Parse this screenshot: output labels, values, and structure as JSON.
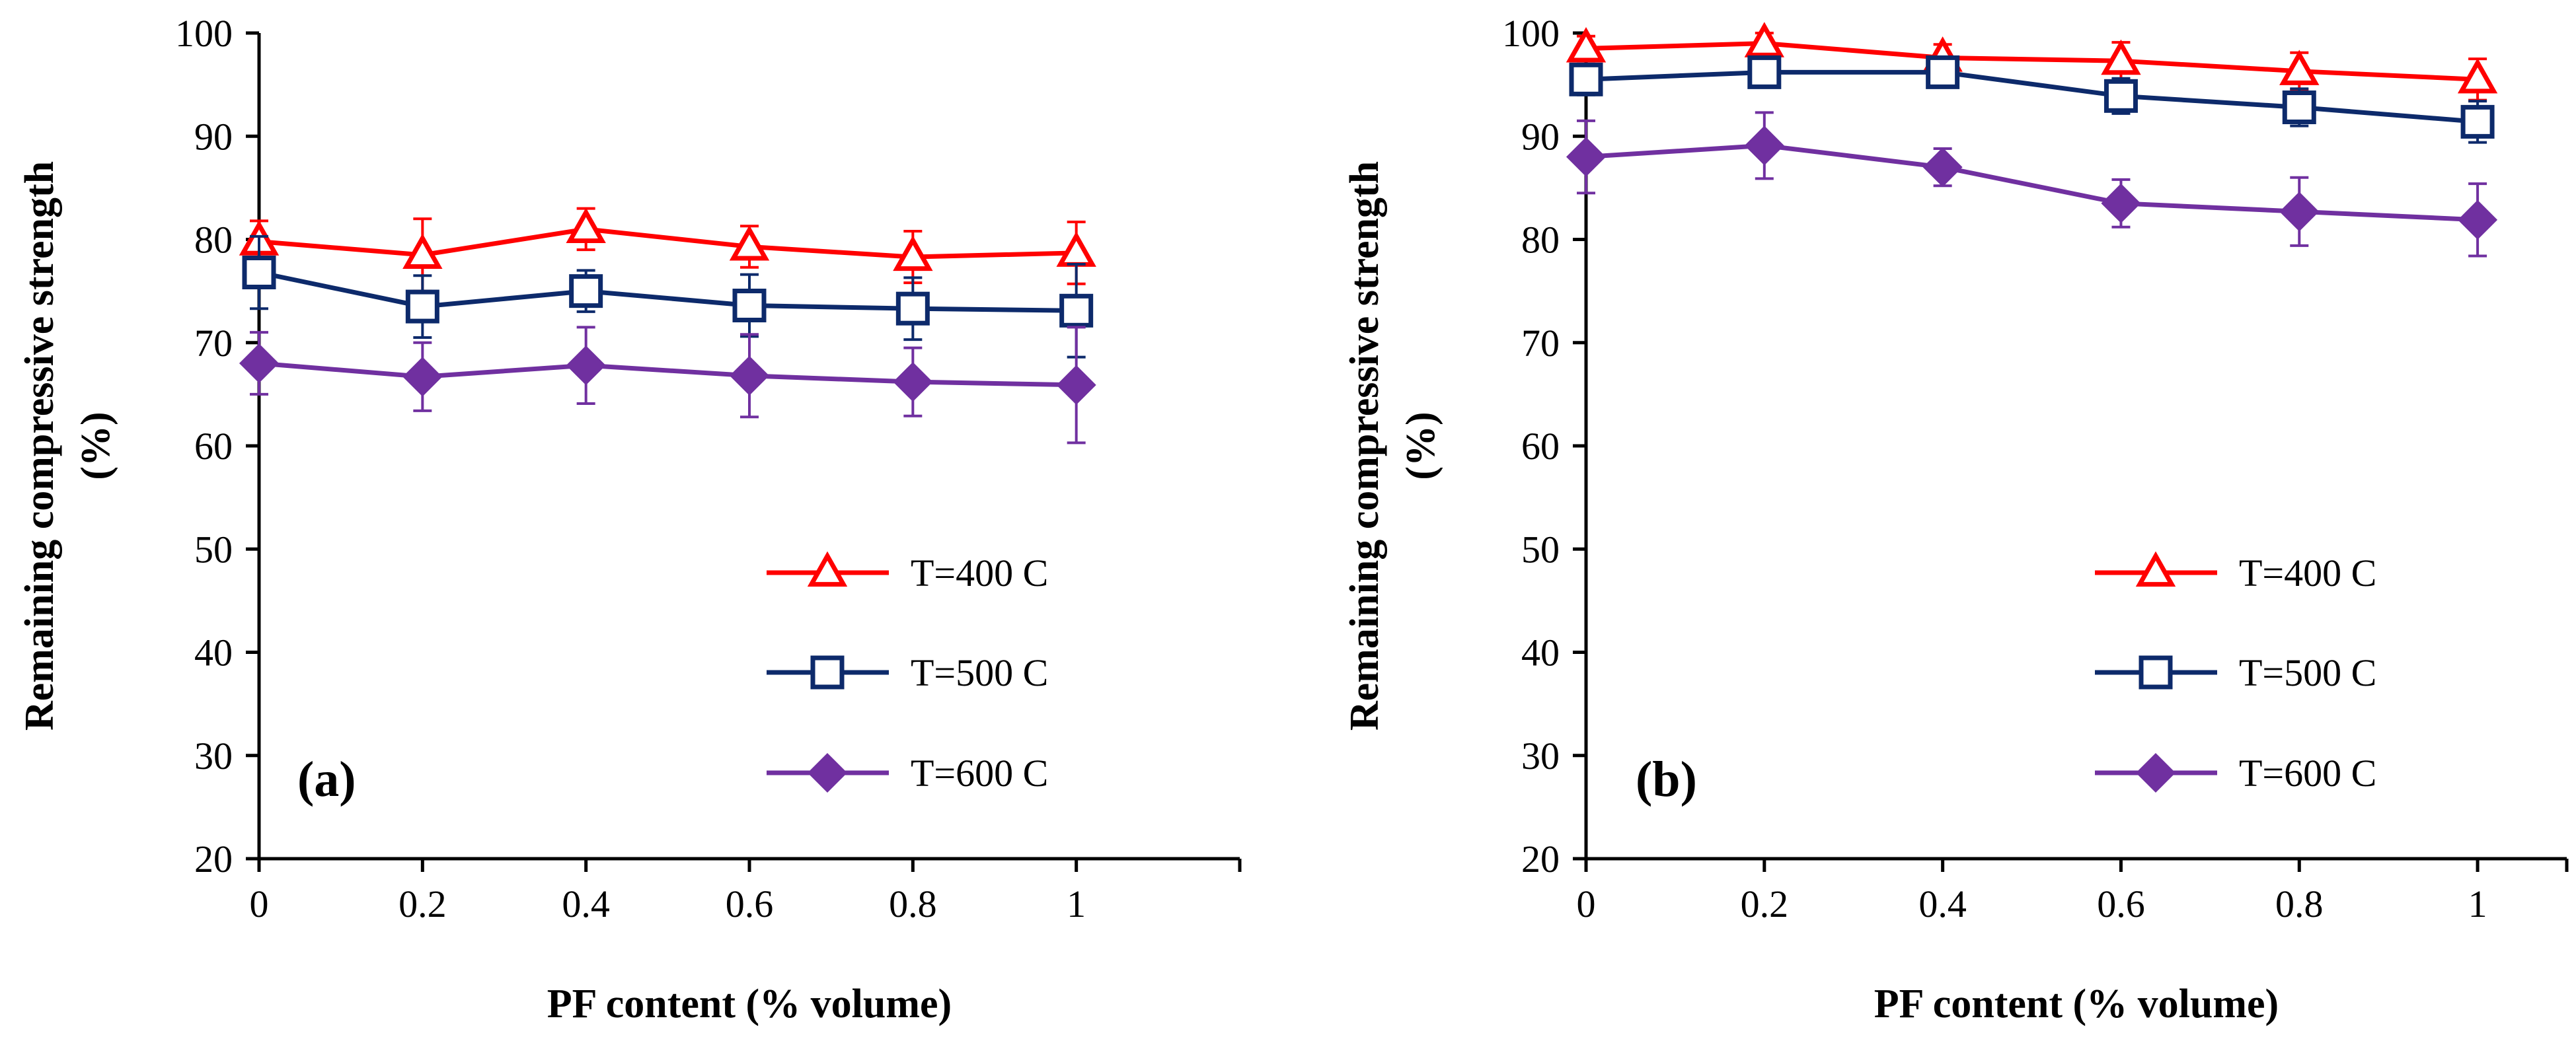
{
  "chart_data": [
    {
      "type": "line",
      "panel_label": "(a)",
      "xlabel": "PF content (% volume)",
      "ylabel": "Remaining compressive strength (%)",
      "ylabel_lines": [
        "Remaining compressive strength",
        "(%)"
      ],
      "x": [
        0,
        0.2,
        0.4,
        0.6,
        0.8,
        1
      ],
      "x_tick_labels": [
        "0",
        "0.2",
        "0.4",
        "0.6",
        "0.8",
        "1"
      ],
      "xlim": [
        0,
        1.2
      ],
      "ylim": [
        20,
        100
      ],
      "y_ticks": [
        20,
        30,
        40,
        50,
        60,
        70,
        80,
        90,
        100
      ],
      "y_tick_labels": [
        "20",
        "30",
        "40",
        "50",
        "60",
        "70",
        "80",
        "90",
        "100"
      ],
      "grid": false,
      "legend_position": "bottom-right",
      "series": [
        {
          "name": "T=400 C",
          "marker": "triangle",
          "color": "#ff0000",
          "values": [
            79.8,
            78.5,
            81.0,
            79.3,
            78.3,
            78.7
          ],
          "errors": [
            2.0,
            3.5,
            2.0,
            2.0,
            2.5,
            3.0
          ]
        },
        {
          "name": "T=500 C",
          "marker": "square",
          "color": "#0d2a6b",
          "values": [
            76.8,
            73.5,
            75.0,
            73.6,
            73.3,
            73.1
          ],
          "errors": [
            3.5,
            3.0,
            2.0,
            3.0,
            3.0,
            4.5
          ]
        },
        {
          "name": "T=600 C",
          "marker": "diamond",
          "color": "#7030a0",
          "values": [
            68.0,
            66.7,
            67.8,
            66.8,
            66.2,
            65.9
          ],
          "errors": [
            3.0,
            3.3,
            3.7,
            4.0,
            3.3,
            5.6
          ]
        }
      ]
    },
    {
      "type": "line",
      "panel_label": "(b)",
      "xlabel": "PF content (% volume)",
      "ylabel": "Remaining compressive strength (%)",
      "ylabel_lines": [
        "Remaining compressive strength",
        "(%)"
      ],
      "x": [
        0,
        0.2,
        0.4,
        0.6,
        0.8,
        1
      ],
      "x_tick_labels": [
        "0",
        "0.2",
        "0.4",
        "0.6",
        "0.8",
        "1"
      ],
      "xlim": [
        0,
        1.1
      ],
      "ylim": [
        20,
        100
      ],
      "y_ticks": [
        20,
        30,
        40,
        50,
        60,
        70,
        80,
        90,
        100
      ],
      "y_tick_labels": [
        "20",
        "30",
        "40",
        "50",
        "60",
        "70",
        "80",
        "90",
        "100"
      ],
      "grid": false,
      "legend_position": "bottom-right",
      "series": [
        {
          "name": "T=400 C",
          "marker": "triangle",
          "color": "#ff0000",
          "values": [
            98.5,
            99.0,
            97.6,
            97.3,
            96.3,
            95.5
          ],
          "errors": [
            1.2,
            1.0,
            1.3,
            1.8,
            1.8,
            2.0
          ]
        },
        {
          "name": "T=500 C",
          "marker": "square",
          "color": "#0d2a6b",
          "values": [
            95.5,
            96.2,
            96.2,
            93.9,
            92.8,
            91.4
          ],
          "errors": [
            1.5,
            1.3,
            1.4,
            1.7,
            1.8,
            2.0
          ]
        },
        {
          "name": "T=600 C",
          "marker": "diamond",
          "color": "#7030a0",
          "values": [
            88.0,
            89.1,
            87.0,
            83.5,
            82.7,
            81.9
          ],
          "errors": [
            3.5,
            3.2,
            1.8,
            2.3,
            3.3,
            3.5
          ]
        }
      ]
    }
  ]
}
